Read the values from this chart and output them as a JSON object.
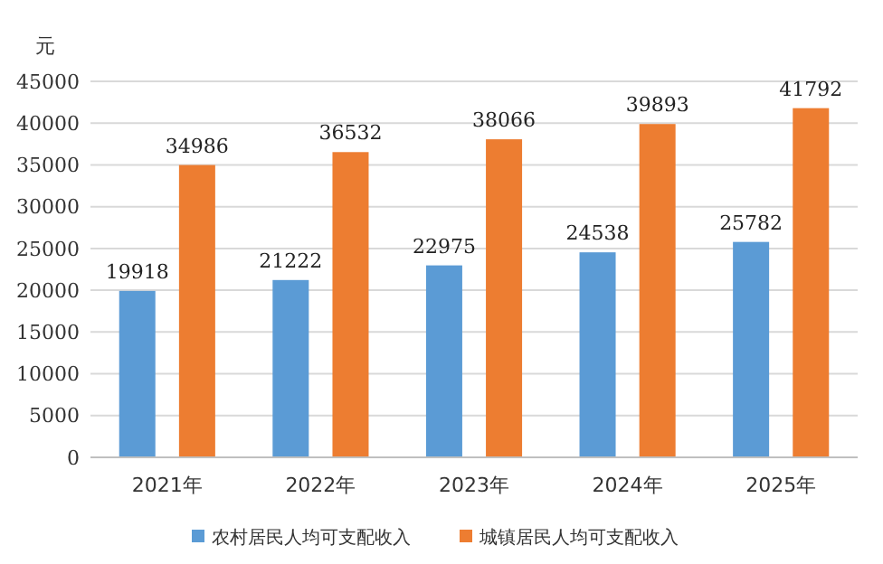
{
  "chart_data": {
    "type": "bar",
    "ylabel": "元",
    "categories": [
      "2021年",
      "2022年",
      "2023年",
      "2024年",
      "2025年"
    ],
    "series": [
      {
        "name": "农村居民人均可支配收入",
        "color": "#5b9bd5",
        "values": [
          19918,
          21222,
          22975,
          24538,
          25782
        ]
      },
      {
        "name": "城镇居民人均可支配收入",
        "color": "#ed7d31",
        "values": [
          34986,
          36532,
          38066,
          39893,
          41792
        ]
      }
    ],
    "ylim": [
      0,
      45000
    ],
    "yticks": [
      0,
      5000,
      10000,
      15000,
      20000,
      25000,
      30000,
      35000,
      40000,
      45000
    ],
    "grid": "y",
    "legend": "bottom",
    "data_labels": true
  }
}
